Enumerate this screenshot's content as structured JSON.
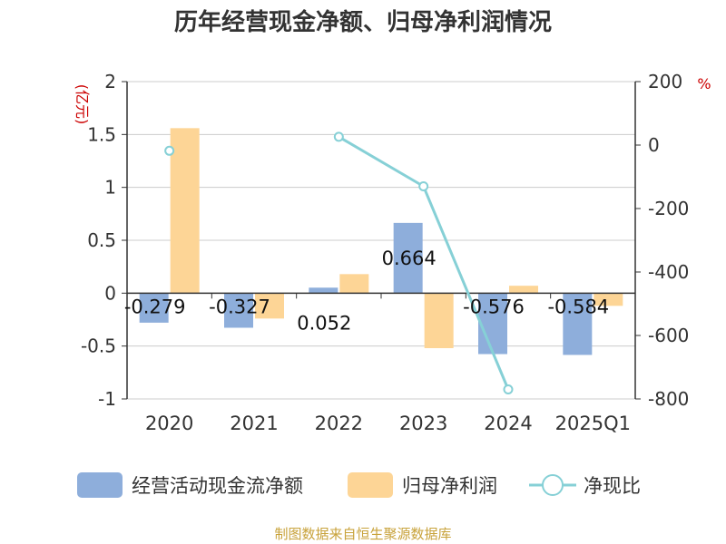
{
  "chart_data": {
    "type": "bar",
    "title": "历年经营现金净额、归母净利润情况",
    "categories": [
      "2020",
      "2021",
      "2022",
      "2023",
      "2024",
      "2025Q1"
    ],
    "ylabel_left": "(亿元)",
    "ylabel_right": "%",
    "ylim_left": [
      -1,
      2
    ],
    "ylim_right": [
      -800,
      200
    ],
    "yticks_left": [
      "2",
      "1.5",
      "1",
      "0.5",
      "0",
      "-0.5",
      "-1"
    ],
    "yticks_right": [
      "200",
      "0",
      "-200",
      "-400",
      "-600",
      "-800"
    ],
    "grid": true,
    "legend_position": "bottom",
    "series": [
      {
        "name": "经营活动现金流净额",
        "kind": "bar",
        "axis": "left",
        "color": "#8eaedb",
        "values": [
          -0.279,
          -0.327,
          0.052,
          0.664,
          -0.576,
          -0.584
        ],
        "labels": [
          "-0.279",
          "-0.327",
          "0.052",
          "0.664",
          "-0.576",
          "-0.584"
        ]
      },
      {
        "name": "归母净利润",
        "kind": "bar",
        "axis": "left",
        "color": "#fdd596",
        "values": [
          1.56,
          -0.24,
          0.18,
          -0.52,
          0.07,
          -0.12
        ]
      },
      {
        "name": "净现比",
        "kind": "line",
        "axis": "right",
        "color": "#86d0d6",
        "values": [
          -18,
          null,
          26,
          -130,
          -770,
          null
        ]
      }
    ]
  },
  "source": "制图数据来自恒生聚源数据库"
}
